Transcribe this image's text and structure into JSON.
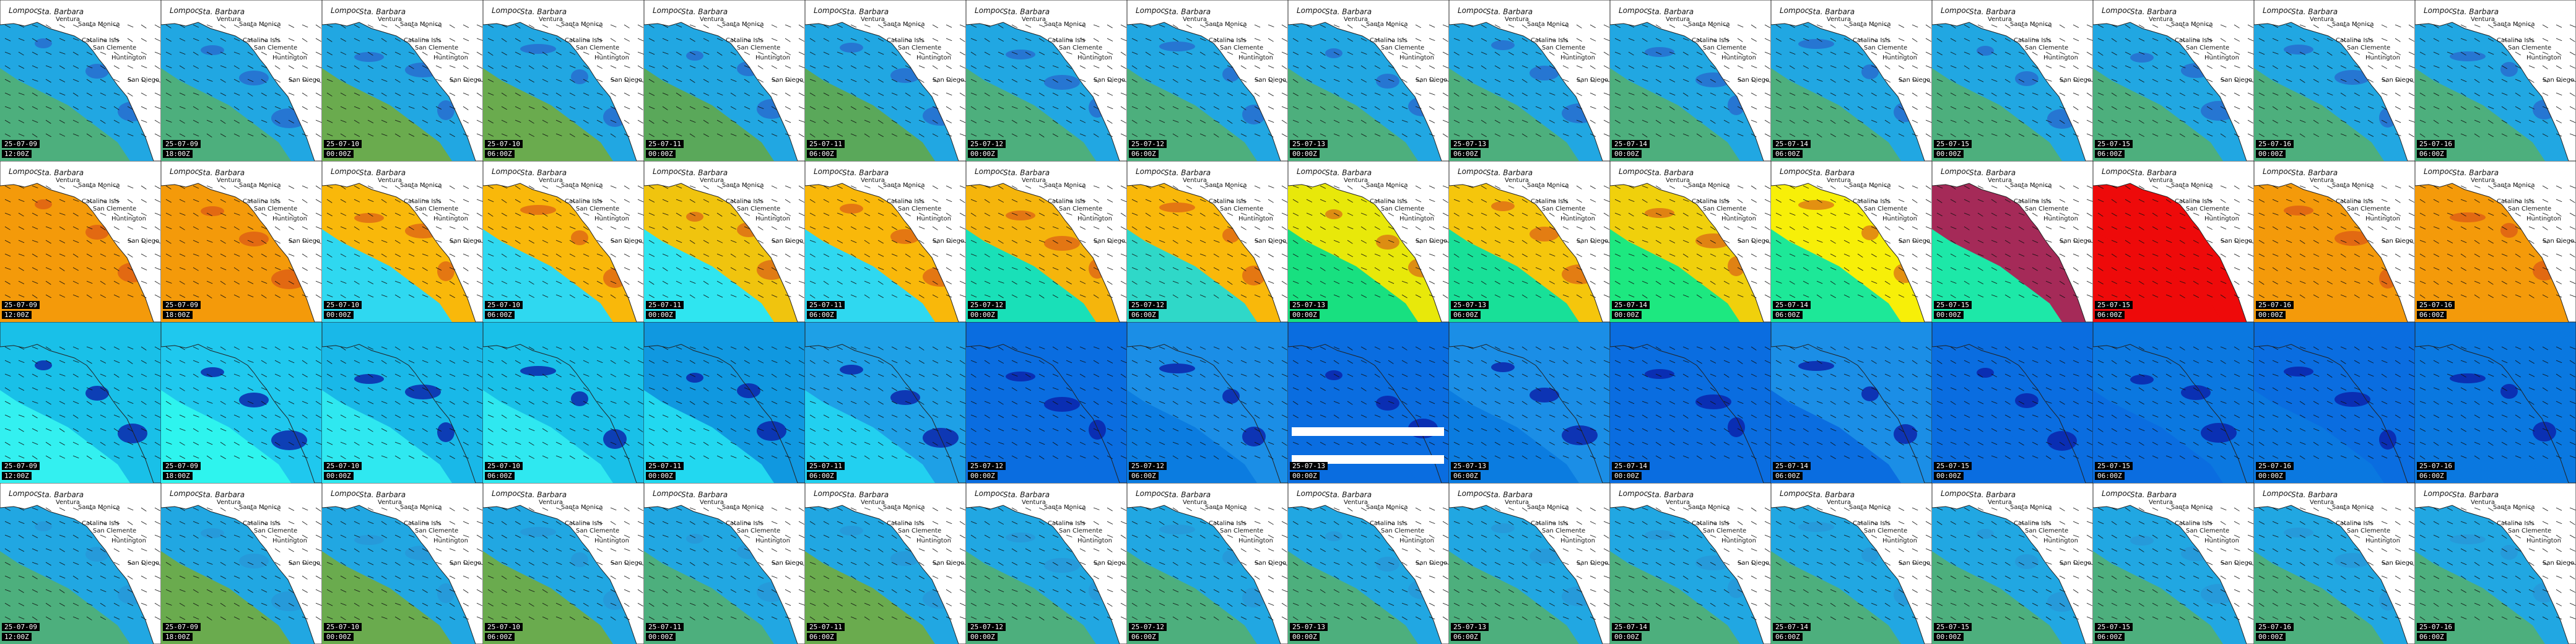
{
  "places": [
    "Lompoc",
    "Sta. Barbara",
    "Ventura",
    "Santa Monica",
    "Catalina Isls",
    "San Clemente",
    "Huntington",
    "San Diego"
  ],
  "columns": [
    {
      "date": "25-07-09",
      "time": "12:00Z"
    },
    {
      "date": "25-07-09",
      "time": "18:00Z"
    },
    {
      "date": "25-07-10",
      "time": "00:00Z"
    },
    {
      "date": "25-07-10",
      "time": "06:00Z"
    },
    {
      "date": "25-07-11",
      "time": "00:00Z"
    },
    {
      "date": "25-07-11",
      "time": "06:00Z"
    },
    {
      "date": "25-07-12",
      "time": "00:00Z"
    },
    {
      "date": "25-07-12",
      "time": "06:00Z"
    },
    {
      "date": "25-07-13",
      "time": "00:00Z"
    },
    {
      "date": "25-07-13",
      "time": "06:00Z"
    },
    {
      "date": "25-07-14",
      "time": "00:00Z"
    },
    {
      "date": "25-07-14",
      "time": "06:00Z"
    },
    {
      "date": "25-07-15",
      "time": "00:00Z"
    },
    {
      "date": "25-07-15",
      "time": "06:00Z"
    },
    {
      "date": "25-07-16",
      "time": "00:00Z"
    },
    {
      "date": "25-07-16",
      "time": "06:00Z"
    }
  ],
  "rows": [
    {
      "id": "row-1",
      "ocean": [
        "#21a7e2",
        "#21a7e2",
        "#21a7e2",
        "#21a7e2",
        "#21a7e2",
        "#21a7e2",
        "#21a7e2",
        "#21a7e2",
        "#21a7e2",
        "#21a7e2",
        "#21a7e2",
        "#21a7e2",
        "#21a7e2",
        "#21a7e2",
        "#21a7e2",
        "#21a7e2"
      ],
      "offshore": [
        "#4daf7d",
        "#4daf7d",
        "#6aab4e",
        "#6aab4e",
        "#5aa85a",
        "#5aa85a",
        "#4daf7d",
        "#4daf7d",
        "#4daf7d",
        "#4daf7d",
        "#4daf7d",
        "#4daf7d",
        "#4daf7d",
        "#4daf7d",
        "#4daf7d",
        "#4daf7d"
      ],
      "land": "#ffffff",
      "accent": "#2b4fc4"
    },
    {
      "id": "row-2",
      "ocean": [
        "#f49a0a",
        "#f49a0a",
        "#f9b80a",
        "#f9b80a",
        "#f0c40e",
        "#f9b80a",
        "#f5b50c",
        "#f9b80a",
        "#e8e80a",
        "#f5c60c",
        "#f0d00c",
        "#f7ef08",
        "#a52a58",
        "#ee0a0a",
        "#f49a0a",
        "#f49a0a"
      ],
      "offshore": [
        "#f49a0a",
        "#f49a0a",
        "#2fd8f0",
        "#2fd8f0",
        "#2fe5f0",
        "#2fd8f0",
        "#19e0b8",
        "#2fd8c8",
        "#18e080",
        "#18e098",
        "#1de880",
        "#1de898",
        "#1de8a8",
        "#ee0a0a",
        "#f49a0a",
        "#f49a0a"
      ],
      "land": "#ffffff",
      "accent": "#d4411a"
    },
    {
      "id": "row-3",
      "ocean": [
        "#19c0e8",
        "#1fc8ee",
        "#19b8e8",
        "#19c0e8",
        "#1098e0",
        "#1ea0e6",
        "#0a6de0",
        "#1b8ee6",
        "#0a6de0",
        "#1b8ee6",
        "#0a6de0",
        "#1b8ee6",
        "#0a6de0",
        "#0b78e0",
        "#0a6de0",
        "#0a78e0"
      ],
      "offshore": [
        "#33f0f0",
        "#2ef4ee",
        "#2fe8f0",
        "#2fe8f0",
        "#22d8f0",
        "#22d0f0",
        "#0a6de0",
        "#0b7ce0",
        "#0a6de0",
        "#0b7ce0",
        "#0a6de0",
        "#0a6de0",
        "#0a6de0",
        "#0a6de0",
        "#0a78e0",
        "#0a78e0"
      ],
      "land": "#0a6de0",
      "accent": "#0a1ea8"
    },
    {
      "id": "row-4",
      "ocean": [
        "#21a7e2",
        "#21a7e2",
        "#21a7e2",
        "#21a7e2",
        "#21a7e2",
        "#21a7e2",
        "#21a7e2",
        "#21a7e2",
        "#21a7e2",
        "#21a7e2",
        "#21a7e2",
        "#21a7e2",
        "#21a7e2",
        "#21a7e2",
        "#21a7e2",
        "#21a7e2"
      ],
      "offshore": [
        "#4daf7d",
        "#6aab4e",
        "#6aab4e",
        "#6aab4e",
        "#4daf7d",
        "#6aab4e",
        "#4daf7d",
        "#4daf7d",
        "#4daf7d",
        "#4daf7d",
        "#4daf7d",
        "#4daf7d",
        "#4daf7d",
        "#4daf7d",
        "#4daf7d",
        "#4daf7d"
      ],
      "land": "#ffffff",
      "accent": "#2b8fd4"
    }
  ]
}
